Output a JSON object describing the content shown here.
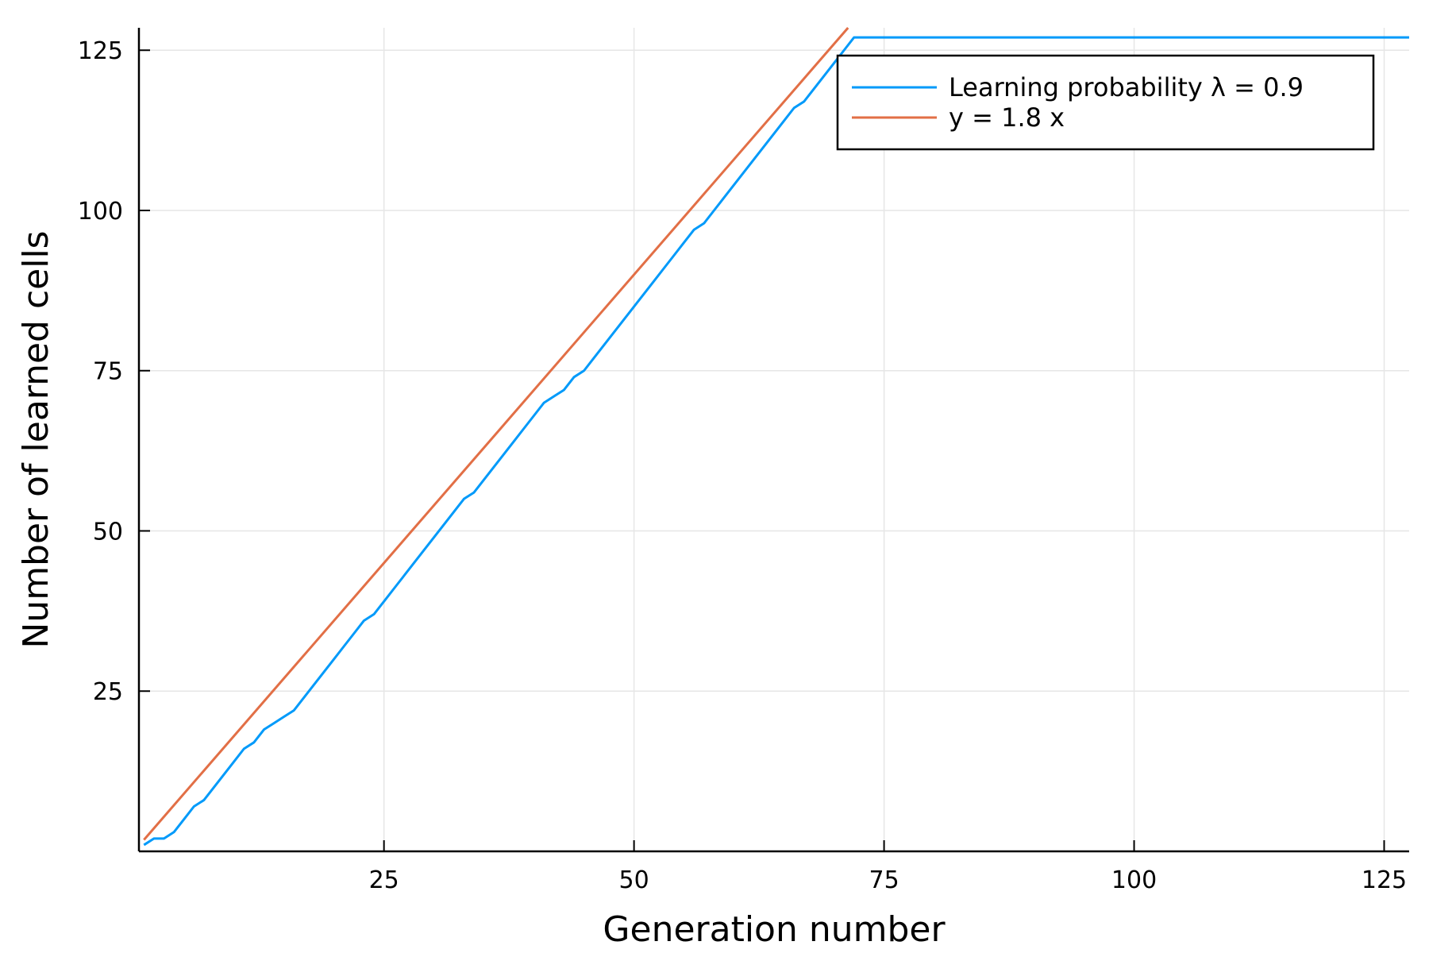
{
  "chart_data": {
    "type": "line",
    "title": "",
    "xlabel": "Generation number",
    "ylabel": "Number of learned cells",
    "xlim": [
      0.5,
      127.5
    ],
    "ylim": [
      0,
      128.5
    ],
    "xticks": [
      25,
      50,
      75,
      100,
      125
    ],
    "yticks": [
      25,
      50,
      75,
      100,
      125
    ],
    "grid": true,
    "legend_position": "top-right",
    "series": [
      {
        "name": "Learning probability λ = 0.9",
        "color": "#009AFA",
        "x": [
          1,
          2,
          3,
          4,
          5,
          6,
          7,
          8,
          9,
          10,
          11,
          12,
          13,
          14,
          15,
          16,
          17,
          18,
          19,
          20,
          21,
          22,
          23,
          24,
          25,
          26,
          27,
          28,
          29,
          30,
          31,
          32,
          33,
          34,
          35,
          36,
          37,
          38,
          39,
          40,
          41,
          42,
          43,
          44,
          45,
          46,
          47,
          48,
          49,
          50,
          51,
          52,
          53,
          54,
          55,
          56,
          57,
          58,
          59,
          60,
          61,
          62,
          63,
          64,
          65,
          66,
          67,
          68,
          69,
          70,
          71,
          72,
          127.5
        ],
        "y": [
          1,
          2,
          2,
          3,
          5,
          7,
          8,
          10,
          12,
          14,
          16,
          17,
          19,
          20,
          21,
          22,
          24,
          26,
          28,
          30,
          32,
          34,
          36,
          37,
          39,
          41,
          43,
          45,
          47,
          49,
          51,
          53,
          55,
          56,
          58,
          60,
          62,
          64,
          66,
          68,
          70,
          71,
          72,
          74,
          75,
          77,
          79,
          81,
          83,
          85,
          87,
          89,
          91,
          93,
          95,
          97,
          98,
          100,
          102,
          104,
          106,
          108,
          110,
          112,
          114,
          116,
          117,
          119,
          121,
          123,
          125,
          127,
          127
        ]
      },
      {
        "name": "y = 1.8 x",
        "color": "#E26F46",
        "x": [
          1,
          71.4
        ],
        "y": [
          1.8,
          128.5
        ]
      }
    ]
  }
}
